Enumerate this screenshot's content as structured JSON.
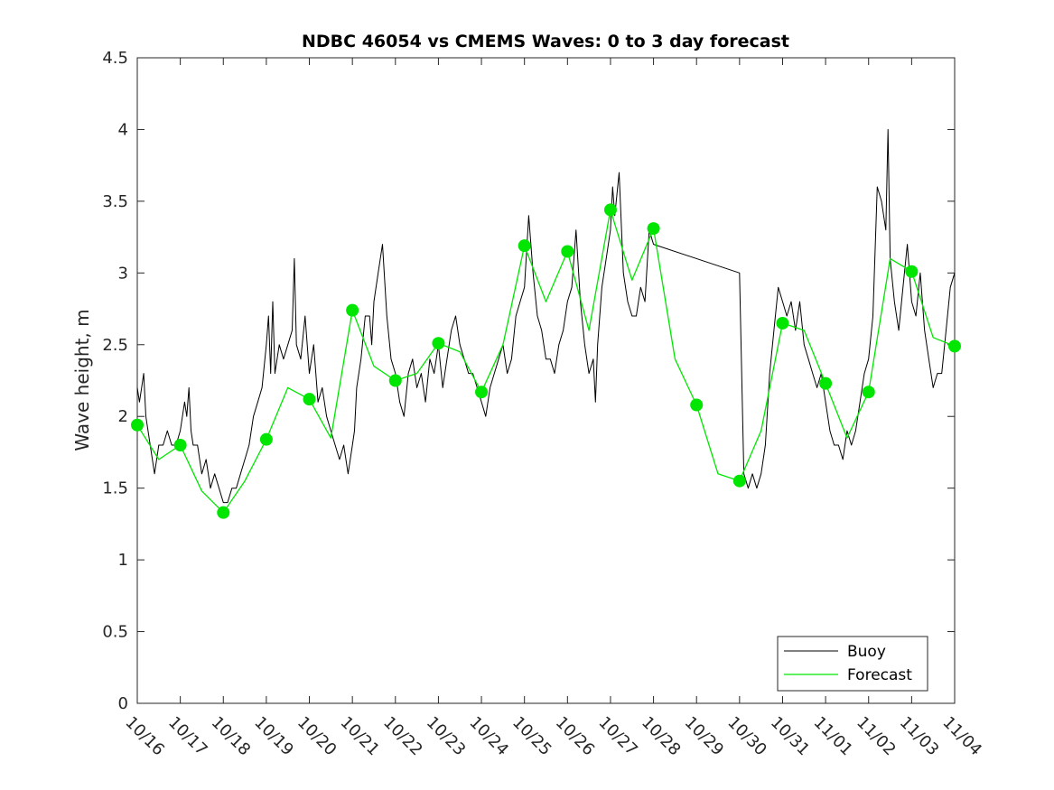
{
  "chart_data": {
    "type": "line",
    "title": "NDBC 46054 vs CMEMS Waves: 0 to 3 day forecast",
    "xlabel": "",
    "ylabel": "Wave height, m",
    "ylim": [
      0,
      4.5
    ],
    "xlim": [
      0,
      19
    ],
    "yticks": [
      0,
      0.5,
      1,
      1.5,
      2,
      2.5,
      3,
      3.5,
      4,
      4.5
    ],
    "ytick_labels": [
      "0",
      "0.5",
      "1",
      "1.5",
      "2",
      "2.5",
      "3",
      "3.5",
      "4",
      "4.5"
    ],
    "xtick_labels": [
      "10/16",
      "10/17",
      "10/18",
      "10/19",
      "10/20",
      "10/21",
      "10/22",
      "10/23",
      "10/24",
      "10/25",
      "10/26",
      "10/27",
      "10/28",
      "10/29",
      "10/30",
      "10/31",
      "11/01",
      "11/02",
      "11/03",
      "11/04"
    ],
    "grid": false,
    "legend_position": "bottom-right",
    "colors": {
      "buoy": "#000000",
      "forecast": "#00e600"
    },
    "series": [
      {
        "name": "Buoy",
        "x": [
          0,
          0.05,
          0.1,
          0.15,
          0.2,
          0.25,
          0.3,
          0.4,
          0.5,
          0.55,
          0.6,
          0.7,
          0.8,
          0.9,
          1.0,
          1.05,
          1.1,
          1.15,
          1.2,
          1.25,
          1.3,
          1.4,
          1.5,
          1.6,
          1.7,
          1.8,
          1.9,
          2.0,
          2.1,
          2.2,
          2.3,
          2.4,
          2.5,
          2.6,
          2.7,
          2.8,
          2.9,
          3.0,
          3.05,
          3.1,
          3.15,
          3.2,
          3.3,
          3.4,
          3.5,
          3.6,
          3.65,
          3.7,
          3.8,
          3.9,
          4.0,
          4.1,
          4.2,
          4.3,
          4.4,
          4.5,
          4.6,
          4.7,
          4.8,
          4.9,
          5.0,
          5.05,
          5.1,
          5.2,
          5.3,
          5.4,
          5.45,
          5.5,
          5.6,
          5.7,
          5.8,
          5.9,
          6.0,
          6.1,
          6.2,
          6.3,
          6.4,
          6.5,
          6.6,
          6.7,
          6.8,
          6.9,
          7.0,
          7.1,
          7.2,
          7.3,
          7.4,
          7.5,
          7.6,
          7.7,
          7.8,
          7.9,
          8.0,
          8.1,
          8.2,
          8.3,
          8.4,
          8.5,
          8.6,
          8.7,
          8.8,
          8.9,
          9.0,
          9.1,
          9.2,
          9.3,
          9.4,
          9.5,
          9.6,
          9.7,
          9.8,
          9.9,
          10.0,
          10.1,
          10.2,
          10.3,
          10.4,
          10.5,
          10.6,
          10.65,
          10.7,
          10.8,
          10.9,
          11.0,
          11.05,
          11.1,
          11.2,
          11.3,
          11.4,
          11.5,
          11.6,
          11.7,
          11.8,
          11.9,
          12.0,
          14.0,
          14.1,
          14.2,
          14.3,
          14.4,
          14.5,
          14.6,
          14.7,
          14.8,
          14.9,
          15.0,
          15.1,
          15.2,
          15.3,
          15.4,
          15.5,
          15.6,
          15.7,
          15.8,
          15.9,
          16.0,
          16.1,
          16.2,
          16.3,
          16.4,
          16.5,
          16.6,
          16.7,
          16.8,
          16.9,
          17.0,
          17.1,
          17.2,
          17.3,
          17.4,
          17.45,
          17.5,
          17.6,
          17.7,
          17.8,
          17.9,
          18.0,
          18.1,
          18.2,
          18.3,
          18.4,
          18.5,
          18.6,
          18.7,
          18.8,
          18.9,
          19.0
        ],
        "values": [
          2.2,
          2.1,
          2.2,
          2.3,
          2.0,
          1.9,
          1.8,
          1.6,
          1.8,
          1.8,
          1.8,
          1.9,
          1.8,
          1.8,
          1.9,
          2.0,
          2.1,
          2.0,
          2.2,
          1.9,
          1.8,
          1.8,
          1.6,
          1.7,
          1.5,
          1.6,
          1.5,
          1.4,
          1.4,
          1.5,
          1.5,
          1.6,
          1.7,
          1.8,
          2.0,
          2.1,
          2.2,
          2.5,
          2.7,
          2.3,
          2.8,
          2.3,
          2.5,
          2.4,
          2.5,
          2.6,
          3.1,
          2.5,
          2.4,
          2.7,
          2.3,
          2.5,
          2.1,
          2.2,
          2.0,
          1.9,
          1.8,
          1.7,
          1.8,
          1.6,
          1.8,
          1.9,
          2.2,
          2.4,
          2.7,
          2.7,
          2.5,
          2.8,
          3.0,
          3.2,
          2.7,
          2.4,
          2.3,
          2.1,
          2.0,
          2.3,
          2.4,
          2.2,
          2.3,
          2.1,
          2.4,
          2.3,
          2.5,
          2.2,
          2.4,
          2.6,
          2.7,
          2.5,
          2.4,
          2.3,
          2.3,
          2.2,
          2.1,
          2.0,
          2.2,
          2.3,
          2.4,
          2.5,
          2.3,
          2.4,
          2.7,
          2.8,
          2.9,
          3.4,
          3.0,
          2.7,
          2.6,
          2.4,
          2.4,
          2.3,
          2.5,
          2.6,
          2.8,
          2.9,
          3.3,
          2.8,
          2.5,
          2.3,
          2.4,
          2.1,
          2.5,
          2.9,
          3.1,
          3.3,
          3.6,
          3.4,
          3.7,
          3.0,
          2.8,
          2.7,
          2.7,
          2.9,
          2.8,
          3.3,
          3.2,
          3.0,
          1.6,
          1.5,
          1.6,
          1.5,
          1.6,
          1.8,
          2.3,
          2.6,
          2.9,
          2.8,
          2.7,
          2.8,
          2.6,
          2.8,
          2.5,
          2.4,
          2.3,
          2.2,
          2.3,
          2.1,
          1.9,
          1.8,
          1.8,
          1.7,
          1.9,
          1.8,
          1.9,
          2.1,
          2.3,
          2.4,
          2.7,
          3.6,
          3.5,
          3.3,
          4.0,
          3.1,
          2.8,
          2.6,
          2.9,
          3.2,
          2.8,
          2.7,
          3.0,
          2.6,
          2.4,
          2.2,
          2.3,
          2.3,
          2.6,
          2.9,
          3.0
        ]
      },
      {
        "name": "Forecast",
        "x": [
          0,
          0.5,
          1.0,
          1.5,
          2.0,
          2.5,
          3.0,
          3.5,
          4.0,
          4.5,
          5.0,
          5.5,
          6.0,
          6.5,
          7.0,
          7.5,
          8.0,
          8.5,
          9.0,
          9.5,
          10.0,
          10.5,
          11.0,
          11.5,
          12.0,
          12.5,
          13.0,
          13.5,
          14.0,
          14.5,
          15.0,
          15.5,
          16.0,
          16.5,
          17.0,
          17.5,
          18.0,
          18.5,
          19.0
        ],
        "values": [
          1.94,
          1.7,
          1.8,
          1.48,
          1.33,
          1.55,
          1.84,
          2.2,
          2.12,
          1.85,
          2.74,
          2.35,
          2.25,
          2.3,
          2.51,
          2.45,
          2.17,
          2.5,
          3.19,
          2.8,
          3.15,
          2.6,
          3.44,
          2.95,
          3.31,
          2.4,
          2.08,
          1.6,
          1.55,
          1.9,
          2.65,
          2.6,
          2.23,
          1.85,
          2.17,
          3.1,
          3.01,
          2.55,
          2.49
        ]
      }
    ],
    "forecast_day_markers": {
      "x": [
        0,
        1,
        2,
        3,
        4,
        5,
        6,
        7,
        8,
        9,
        10,
        11,
        12,
        13,
        14,
        15,
        16,
        17,
        18,
        19
      ],
      "values": [
        1.94,
        1.8,
        1.33,
        1.84,
        2.12,
        2.74,
        2.25,
        2.51,
        2.17,
        3.19,
        3.15,
        3.44,
        3.31,
        2.08,
        1.55,
        2.65,
        2.23,
        2.17,
        3.01,
        2.49
      ]
    }
  },
  "legend": {
    "buoy_label": "Buoy",
    "forecast_label": "Forecast"
  }
}
